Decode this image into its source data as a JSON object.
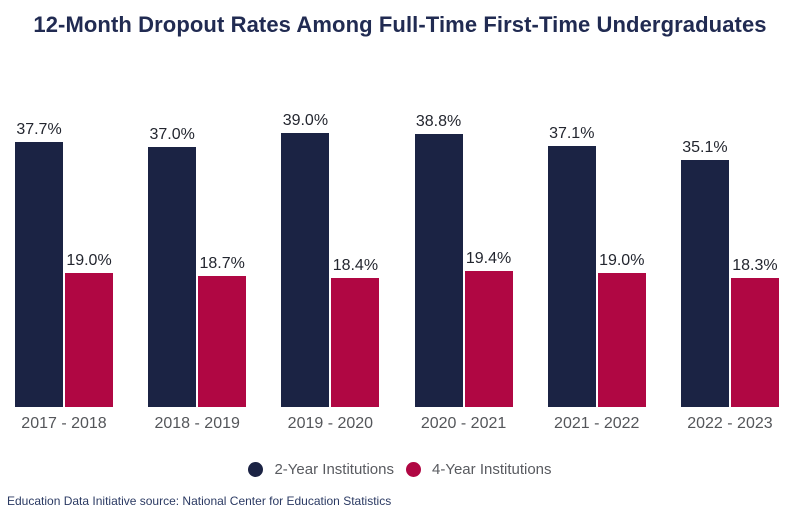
{
  "title": "12-Month Dropout Rates Among Full-Time First-Time Undergraduates",
  "footer": "Education Data Initiative source: National Center for Education Statistics",
  "colors": {
    "navy": "#1b2344",
    "crimson": "#b00743",
    "title_text": "#212b52",
    "axis_label_text": "#54565a",
    "legend_text": "#595b60",
    "footer_text": "#2b3a63"
  },
  "chart_data": {
    "type": "bar",
    "title": "12-Month Dropout Rates Among Full-Time First-Time Undergraduates",
    "categories": [
      "2017 - 2018",
      "2018 - 2019",
      "2019 - 2020",
      "2020 - 2021",
      "2021 - 2022",
      "2022 - 2023"
    ],
    "series": [
      {
        "name": "2-Year Institutions",
        "color": "#1b2344",
        "values": [
          37.7,
          37.0,
          39.0,
          38.8,
          37.1,
          35.1
        ]
      },
      {
        "name": "4-Year Institutions",
        "color": "#b00743",
        "values": [
          19.0,
          18.7,
          18.4,
          19.4,
          19.0,
          18.3
        ]
      }
    ],
    "value_suffix": "%",
    "data_labels": true,
    "ylim": [
      0,
      40
    ],
    "grid": false,
    "axes_hidden": true,
    "legend_position": "bottom",
    "xlabel": "",
    "ylabel": ""
  }
}
